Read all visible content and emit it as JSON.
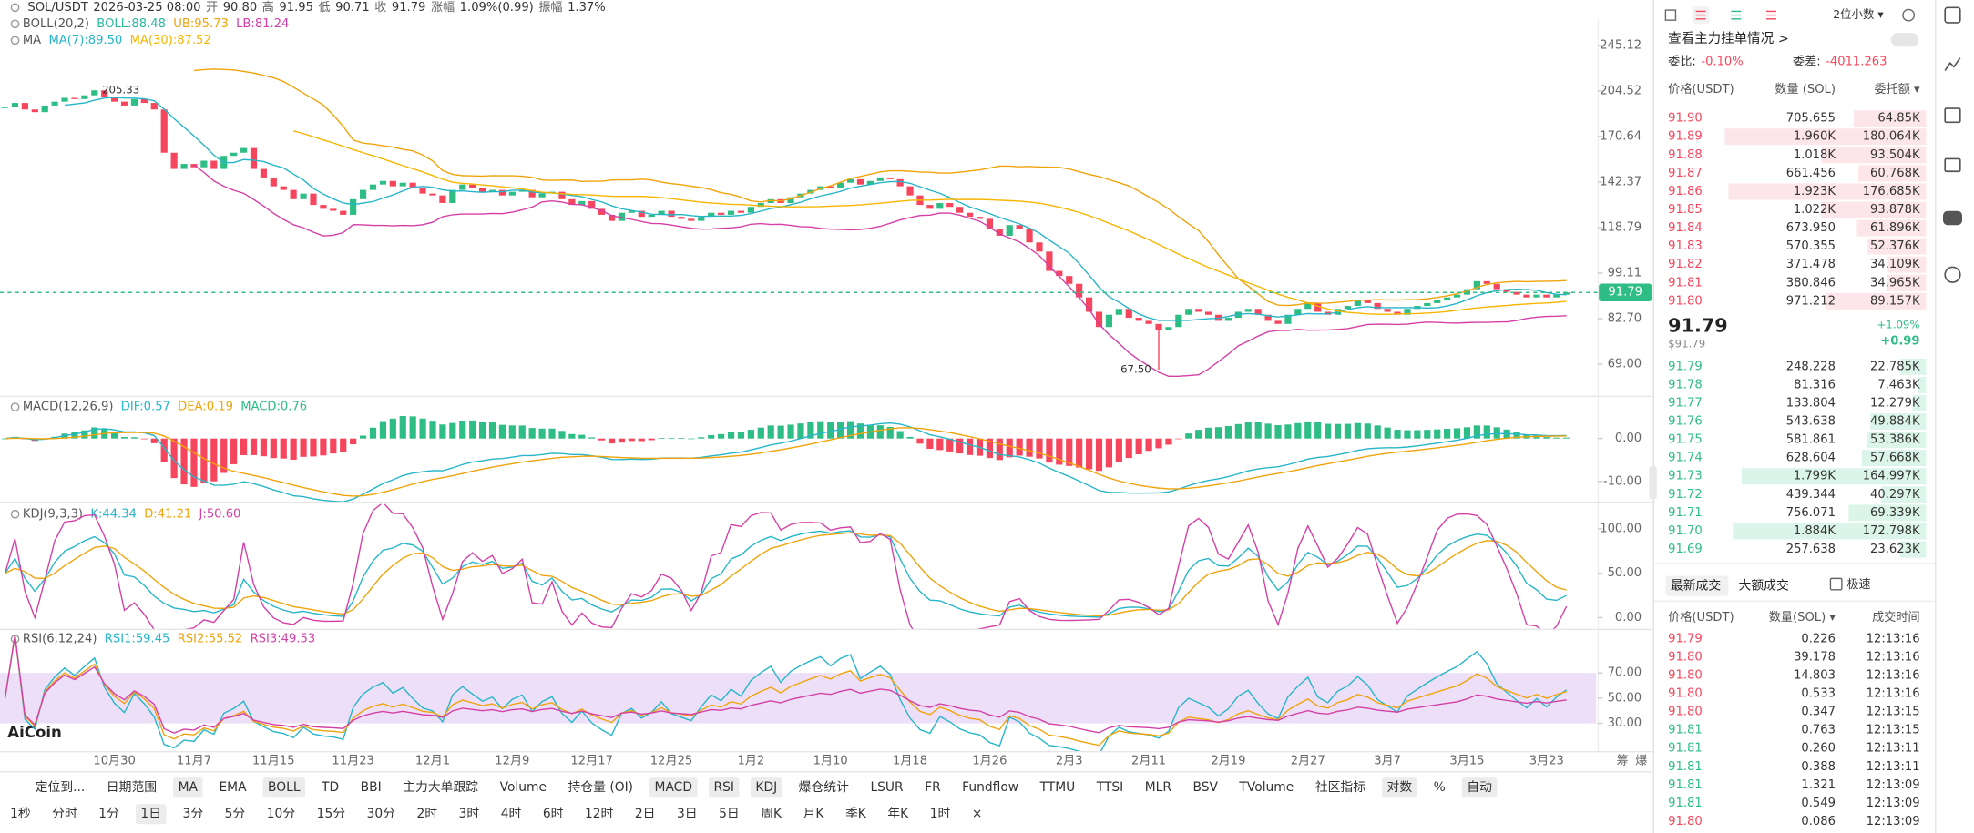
{
  "header": {
    "symbol": "SOL/USDT",
    "time": "2026-03-25 08:00",
    "stats": [
      [
        "开",
        "90.80"
      ],
      [
        "高",
        "91.95"
      ],
      [
        "低",
        "90.71"
      ],
      [
        "收",
        "91.79"
      ],
      [
        "涨幅",
        "1.09%(0.99)"
      ],
      [
        "振幅",
        "1.37%"
      ]
    ]
  },
  "indicators": {
    "boll": {
      "name": "BOLL(20,2)",
      "items": [
        {
          "text": "BOLL:88.48",
          "color": "#2bb8a3"
        },
        {
          "text": "UB:95.73",
          "color": "#f0a30a"
        },
        {
          "text": "LB:81.24",
          "color": "#d43fa6"
        }
      ]
    },
    "ma": {
      "name": "MA",
      "items": [
        {
          "text": "MA(7):89.50",
          "color": "#26b5c9"
        },
        {
          "text": "MA(30):87.52",
          "color": "#f7b500"
        }
      ]
    },
    "macd": {
      "name": "MACD(12,26,9)",
      "items": [
        {
          "text": "DIF:0.57",
          "color": "#26b5c9"
        },
        {
          "text": "DEA:0.19",
          "color": "#f0a30a"
        },
        {
          "text": "MACD:0.76",
          "color": "#2ebd85"
        }
      ]
    },
    "kdj": {
      "name": "KDJ(9,3,3)",
      "items": [
        {
          "text": "K:44.34",
          "color": "#26b5c9"
        },
        {
          "text": "D:41.21",
          "color": "#f0a30a"
        },
        {
          "text": "J:50.60",
          "color": "#d43fa6"
        }
      ]
    },
    "rsi": {
      "name": "RSI(6,12,24)",
      "items": [
        {
          "text": "RSI1:59.45",
          "color": "#26b5c9"
        },
        {
          "text": "RSI2:55.52",
          "color": "#f0a30a"
        },
        {
          "text": "RSI3:49.53",
          "color": "#d43fa6"
        }
      ]
    }
  },
  "price_chart": {
    "type": "candlestick",
    "log": true,
    "up_color": "#2ebd85",
    "down_color": "#f6465d",
    "closes": [
      192,
      195,
      190,
      188,
      193,
      196,
      199,
      198,
      201,
      205,
      200,
      196,
      193,
      198,
      195,
      190,
      160,
      150,
      153,
      151,
      155,
      150,
      158,
      160,
      163,
      150,
      145,
      140,
      138,
      133,
      136,
      130,
      128,
      127,
      125,
      133,
      138,
      141,
      143,
      140,
      142,
      139,
      136,
      135,
      131,
      138,
      141,
      139,
      137,
      138,
      135,
      137,
      138,
      134,
      136,
      137,
      133,
      130,
      132,
      128,
      125,
      122,
      126,
      127,
      124,
      125,
      127,
      124,
      123,
      122,
      124,
      126,
      125,
      127,
      126,
      129,
      131,
      133,
      131,
      134,
      136,
      138,
      140,
      139,
      142,
      144,
      141,
      143,
      145,
      144,
      140,
      135,
      130,
      128,
      131,
      129,
      126,
      124,
      123,
      118,
      115,
      120,
      118,
      112,
      108,
      100,
      98,
      95,
      90,
      85,
      80,
      84,
      86,
      83,
      82,
      81,
      79,
      80,
      84,
      86,
      85,
      84,
      82,
      83,
      85,
      86,
      84,
      82,
      81,
      84,
      86,
      88,
      85,
      84,
      86,
      87,
      89,
      88,
      86,
      85,
      84,
      86,
      87,
      88,
      89,
      90,
      91,
      93,
      96,
      95,
      93,
      92,
      91,
      90,
      91,
      90,
      91,
      91.79
    ],
    "ylim": [
      61.5,
      268.3
    ],
    "yticks": [
      245.12,
      204.52,
      170.64,
      142.37,
      118.79,
      99.11,
      {
        "value": 82.7,
        "label": "82.70"
      },
      {
        "value": 69,
        "label": "69.00"
      }
    ],
    "high": 205.33,
    "low": {
      "value": 67.5,
      "label": "67.50"
    },
    "last": 91.79,
    "x_labels": [
      "10月30",
      "11月7",
      "11月15",
      "11月23",
      "12月1",
      "12月9",
      "12月17",
      "12月25",
      "1月2",
      "1月10",
      "1月18",
      "1月26",
      "2月3",
      "2月11",
      "2月19",
      "2月27",
      "3月7",
      "3月15",
      "3月23"
    ],
    "side_labels": [
      "筹",
      "爆"
    ],
    "logo": "AiCoin"
  },
  "macd_chart": {
    "ylim": [
      -14.7,
      9.4
    ],
    "yticks": [
      {
        "value": 0,
        "label": "0.00"
      },
      {
        "value": -10,
        "label": "-10.00"
      }
    ]
  },
  "kdj_chart": {
    "ylim": [
      -12.7,
      128
    ],
    "yticks": [
      {
        "value": 100,
        "label": "100.00"
      },
      {
        "value": 50,
        "label": "50.00"
      },
      {
        "value": 0,
        "label": "0.00"
      }
    ]
  },
  "rsi_chart": {
    "ylim": [
      8,
      103
    ],
    "yticks": [
      {
        "value": 70,
        "label": "70.00"
      },
      {
        "value": 50,
        "label": "50.00"
      },
      {
        "value": 30,
        "label": "30.00"
      }
    ],
    "band_color": "#ecdff7"
  },
  "order_book": {
    "decimals": "2位小数 ▾",
    "title": "查看主力挂单情况 >",
    "ratio_label": "委比:",
    "ratio": "-0.10%",
    "diff_label": "委差:",
    "diff": "-4011.263",
    "columns": [
      "价格(USDT)",
      "数量 (SOL)",
      "委托额 ▾"
    ],
    "asks": [
      [
        "91.90",
        "705.655",
        "64.85K"
      ],
      [
        "91.89",
        "1.960K",
        "180.064K"
      ],
      [
        "91.88",
        "1.018K",
        "93.504K"
      ],
      [
        "91.87",
        "661.456",
        "60.768K"
      ],
      [
        "91.86",
        "1.923K",
        "176.685K"
      ],
      [
        "91.85",
        "1.022K",
        "93.878K"
      ],
      [
        "91.84",
        "673.950",
        "61.896K"
      ],
      [
        "91.83",
        "570.355",
        "52.376K"
      ],
      [
        "91.82",
        "371.478",
        "34.109K"
      ],
      [
        "91.81",
        "380.846",
        "34.965K"
      ],
      [
        "91.80",
        "971.212",
        "89.157K"
      ]
    ],
    "last": "91.79",
    "last_usd": "$91.79",
    "change_pct": "+1.09%",
    "change": "+0.99",
    "bids": [
      [
        "91.79",
        "248.228",
        "22.785K"
      ],
      [
        "91.78",
        "81.316",
        "7.463K"
      ],
      [
        "91.77",
        "133.804",
        "12.279K"
      ],
      [
        "91.76",
        "543.638",
        "49.884K"
      ],
      [
        "91.75",
        "581.861",
        "53.386K"
      ],
      [
        "91.74",
        "628.604",
        "57.668K"
      ],
      [
        "91.73",
        "1.799K",
        "164.997K"
      ],
      [
        "91.72",
        "439.344",
        "40.297K"
      ],
      [
        "91.71",
        "756.071",
        "69.339K"
      ],
      [
        "91.70",
        "1.884K",
        "172.798K"
      ],
      [
        "91.69",
        "257.638",
        "23.623K"
      ]
    ]
  },
  "trades": {
    "tabs": [
      "最新成交",
      "大额成交"
    ],
    "fast": "极速",
    "columns": [
      "价格(USDT)",
      "数量(SOL) ▾",
      "成交时间"
    ],
    "rows": [
      {
        "price": "91.79",
        "qty": "0.226",
        "time": "12:13:16",
        "color": "#f6465d"
      },
      {
        "price": "91.80",
        "qty": "39.178",
        "time": "12:13:16",
        "color": "#f6465d"
      },
      {
        "price": "91.80",
        "qty": "14.803",
        "time": "12:13:16",
        "color": "#f6465d"
      },
      {
        "price": "91.80",
        "qty": "0.533",
        "time": "12:13:16",
        "color": "#f6465d"
      },
      {
        "price": "91.80",
        "qty": "0.347",
        "time": "12:13:15",
        "color": "#f6465d"
      },
      {
        "price": "91.81",
        "qty": "0.763",
        "time": "12:13:15",
        "color": "#2ebd85"
      },
      {
        "price": "91.81",
        "qty": "0.260",
        "time": "12:13:11",
        "color": "#2ebd85"
      },
      {
        "price": "91.81",
        "qty": "0.388",
        "time": "12:13:11",
        "color": "#2ebd85"
      },
      {
        "price": "91.81",
        "qty": "1.321",
        "time": "12:13:09",
        "color": "#2ebd85"
      },
      {
        "price": "91.81",
        "qty": "0.549",
        "time": "12:13:09",
        "color": "#2ebd85"
      },
      {
        "price": "91.80",
        "qty": "0.086",
        "time": "12:13:09",
        "color": "#f6465d"
      }
    ]
  },
  "toolbar": {
    "row1": [
      {
        "label": "定位到..."
      },
      {
        "label": "日期范围"
      },
      {
        "label": "MA",
        "on": true
      },
      {
        "label": "EMA"
      },
      {
        "label": "BOLL",
        "on": true
      },
      {
        "label": "TD"
      },
      {
        "label": "BBI"
      },
      {
        "label": "主力大单跟踪"
      },
      {
        "label": "Volume"
      },
      {
        "label": "持仓量 (OI)"
      },
      {
        "label": "MACD",
        "on": true
      },
      {
        "label": "RSI",
        "on": true
      },
      {
        "label": "KDJ",
        "on": true
      },
      {
        "label": "爆仓统计"
      },
      {
        "label": "LSUR"
      },
      {
        "label": "FR"
      },
      {
        "label": "Fundflow"
      },
      {
        "label": "TTMU"
      },
      {
        "label": "TTSI"
      },
      {
        "label": "MLR"
      },
      {
        "label": "BSV"
      },
      {
        "label": "TVolume"
      },
      {
        "label": "社区指标"
      },
      {
        "label": "对数",
        "on": true
      },
      {
        "label": "%"
      },
      {
        "label": "自动",
        "on": true
      }
    ],
    "row2": [
      {
        "label": "1秒"
      },
      {
        "label": "分时"
      },
      {
        "label": "1分"
      },
      {
        "label": "1日",
        "on": true
      },
      {
        "label": "3分"
      },
      {
        "label": "5分"
      },
      {
        "label": "10分"
      },
      {
        "label": "15分"
      },
      {
        "label": "30分"
      },
      {
        "label": "2时"
      },
      {
        "label": "3时"
      },
      {
        "label": "4时"
      },
      {
        "label": "6时"
      },
      {
        "label": "12时"
      },
      {
        "label": "2日"
      },
      {
        "label": "3日"
      },
      {
        "label": "5日"
      },
      {
        "label": "周K"
      },
      {
        "label": "月K"
      },
      {
        "label": "季K"
      },
      {
        "label": "年K"
      },
      {
        "label": "1时"
      },
      {
        "label": "×"
      }
    ]
  }
}
